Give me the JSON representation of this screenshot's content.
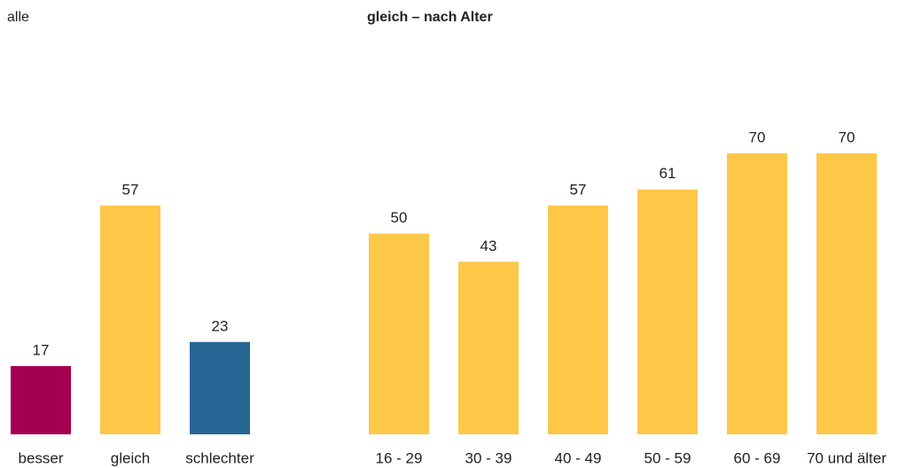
{
  "chart_data": [
    {
      "type": "bar",
      "title": "alle",
      "categories": [
        "besser",
        "gleich",
        "schlechter"
      ],
      "values": [
        17,
        57,
        23
      ],
      "colors": [
        "#a5004f",
        "#fdc748",
        "#256593"
      ]
    },
    {
      "type": "bar",
      "title": "gleich – nach Alter",
      "categories": [
        "16 - 29",
        "30 - 39",
        "40 - 49",
        "50 - 59",
        "60 - 69",
        "70 und älter"
      ],
      "values": [
        50,
        43,
        57,
        61,
        70,
        70
      ],
      "color": "#fdc748"
    }
  ]
}
